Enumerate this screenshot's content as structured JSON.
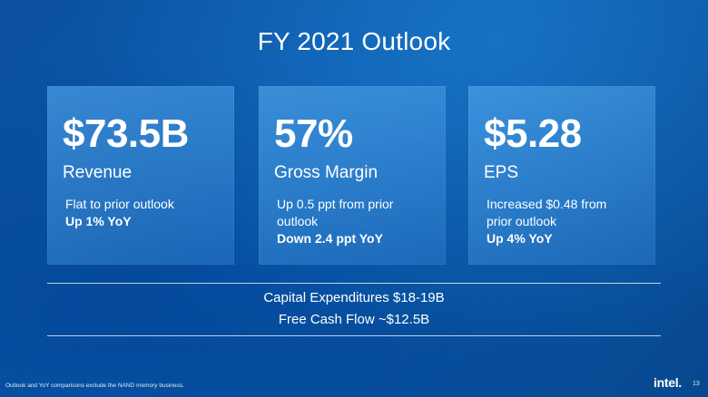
{
  "title": "FY 2021 Outlook",
  "cards": [
    {
      "metric": "$73.5B",
      "label": "Revenue",
      "note_lines": [
        "Flat to prior outlook"
      ],
      "note_bold": "Up 1% YoY"
    },
    {
      "metric": "57%",
      "label": "Gross Margin",
      "note_lines": [
        "Up 0.5 ppt from prior",
        "outlook"
      ],
      "note_bold": "Down 2.4 ppt YoY"
    },
    {
      "metric": "$5.28",
      "label": "EPS",
      "note_lines": [
        "Increased $0.48 from",
        "prior outlook"
      ],
      "note_bold": "Up 4% YoY"
    }
  ],
  "summary": {
    "capex": "Capital Expenditures $18-19B",
    "fcf": "Free Cash Flow ~$12.5B"
  },
  "footnote": "Outlook and YoY comparisons exclude the NAND memory business.",
  "logo_text": "intel.",
  "page_number": "13"
}
